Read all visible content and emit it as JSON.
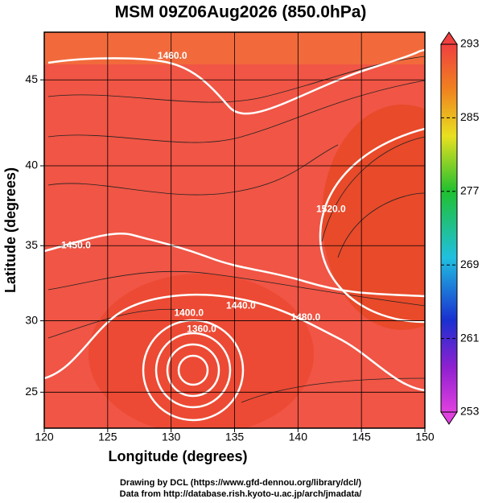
{
  "chart_data": {
    "type": "map",
    "title": "MSM 09Z06Aug2026 (850.0hPa)",
    "x_label": "Longitude (degrees)",
    "y_label": "Latitude  (degrees)",
    "xlim": [
      120,
      150
    ],
    "ylim": [
      22.4,
      47.6
    ],
    "xticks": [
      120,
      125,
      130,
      135,
      140,
      145,
      150
    ],
    "yticks": [
      25,
      30,
      35,
      40,
      45
    ],
    "colorbar": {
      "lim": [
        253,
        293
      ],
      "ticks": [
        253,
        261,
        269,
        277,
        285,
        293
      ]
    },
    "contour_labels": [
      {
        "lon": 130.1,
        "lat": 46.3,
        "label": "1460.0"
      },
      {
        "lon": 122.5,
        "lat": 35.0,
        "label": "1450.0"
      },
      {
        "lon": 142.6,
        "lat": 37.3,
        "label": "1520.0"
      },
      {
        "lon": 131.4,
        "lat": 30.5,
        "label": "1400.0"
      },
      {
        "lon": 135.5,
        "lat": 31.0,
        "label": "1440.0"
      },
      {
        "lon": 132.4,
        "lat": 29.4,
        "label": "1360.0"
      },
      {
        "lon": 140.6,
        "lat": 30.2,
        "label": "1480.0"
      }
    ]
  },
  "footer": [
    "Drawing by DCL (https://www.gfd-dennou.org/library/dcl/)",
    "Data from http://database.rish.kyoto-u.ac.jp/arch/jmadata/"
  ]
}
